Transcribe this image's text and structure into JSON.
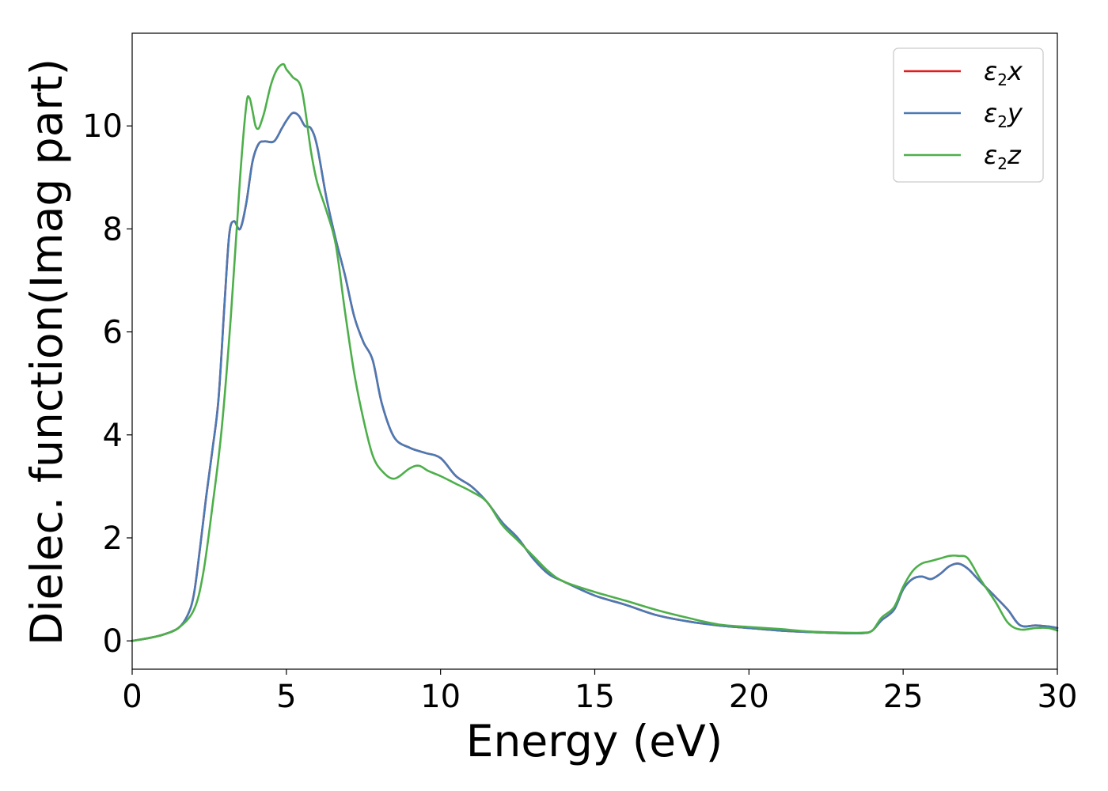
{
  "chart_data": {
    "type": "line",
    "title": "",
    "xlabel": "Energy (eV)",
    "ylabel": "Dielec. function(Imag part)",
    "xlim": [
      0,
      30
    ],
    "ylim": [
      -0.55,
      11.8
    ],
    "xticks": [
      0,
      5,
      10,
      15,
      20,
      25,
      30
    ],
    "xtick_labels": [
      "0",
      "5",
      "10",
      "15",
      "20",
      "25",
      "30"
    ],
    "yticks": [
      0,
      2,
      4,
      6,
      8,
      10
    ],
    "ytick_labels": [
      "0",
      "2",
      "4",
      "6",
      "8",
      "10"
    ],
    "grid": false,
    "legend_position": "top-right",
    "series": [
      {
        "name": "ε2x",
        "legend_symbol": "ε",
        "legend_sub": "2",
        "legend_suffix": "x",
        "color": "#e41a1c",
        "x": [
          0,
          0.5,
          1.0,
          1.5,
          1.8,
          2.0,
          2.2,
          2.4,
          2.6,
          2.8,
          3.0,
          3.15,
          3.3,
          3.5,
          3.7,
          3.9,
          4.1,
          4.3,
          4.6,
          4.85,
          5.0,
          5.2,
          5.4,
          5.6,
          5.8,
          6.0,
          6.3,
          6.6,
          6.9,
          7.2,
          7.5,
          7.8,
          8.1,
          8.5,
          9.0,
          9.5,
          10.0,
          10.5,
          11.0,
          11.5,
          12.0,
          12.5,
          13.0,
          13.5,
          14.0,
          15.0,
          16.0,
          17.0,
          18.0,
          19.0,
          20.0,
          21.0,
          22.0,
          23.0,
          23.7,
          24.0,
          24.3,
          24.7,
          25.0,
          25.3,
          25.6,
          25.9,
          26.2,
          26.5,
          26.8,
          27.1,
          27.5,
          28.0,
          28.4,
          28.8,
          29.3,
          29.7,
          30.0
        ],
        "y": [
          0,
          0.05,
          0.12,
          0.25,
          0.5,
          0.9,
          1.8,
          2.8,
          3.7,
          4.7,
          6.6,
          7.9,
          8.15,
          8.0,
          8.5,
          9.3,
          9.65,
          9.7,
          9.7,
          9.95,
          10.1,
          10.25,
          10.2,
          10.0,
          9.95,
          9.6,
          8.6,
          7.8,
          7.1,
          6.3,
          5.8,
          5.45,
          4.6,
          3.95,
          3.75,
          3.65,
          3.55,
          3.2,
          3.0,
          2.7,
          2.3,
          2.0,
          1.6,
          1.3,
          1.15,
          0.88,
          0.7,
          0.5,
          0.38,
          0.3,
          0.25,
          0.2,
          0.17,
          0.15,
          0.15,
          0.2,
          0.4,
          0.6,
          1.0,
          1.2,
          1.25,
          1.2,
          1.3,
          1.45,
          1.5,
          1.4,
          1.15,
          0.85,
          0.6,
          0.3,
          0.3,
          0.28,
          0.25
        ]
      },
      {
        "name": "ε2y",
        "legend_symbol": "ε",
        "legend_sub": "2",
        "legend_suffix": "y",
        "color": "#4a7ab4",
        "x": [
          0,
          0.5,
          1.0,
          1.5,
          1.8,
          2.0,
          2.2,
          2.4,
          2.6,
          2.8,
          3.0,
          3.15,
          3.3,
          3.5,
          3.7,
          3.9,
          4.1,
          4.3,
          4.6,
          4.85,
          5.0,
          5.2,
          5.4,
          5.6,
          5.8,
          6.0,
          6.3,
          6.6,
          6.9,
          7.2,
          7.5,
          7.8,
          8.1,
          8.5,
          9.0,
          9.5,
          10.0,
          10.5,
          11.0,
          11.5,
          12.0,
          12.5,
          13.0,
          13.5,
          14.0,
          15.0,
          16.0,
          17.0,
          18.0,
          19.0,
          20.0,
          21.0,
          22.0,
          23.0,
          23.7,
          24.0,
          24.3,
          24.7,
          25.0,
          25.3,
          25.6,
          25.9,
          26.2,
          26.5,
          26.8,
          27.1,
          27.5,
          28.0,
          28.4,
          28.8,
          29.3,
          29.7,
          30.0
        ],
        "y": [
          0,
          0.05,
          0.12,
          0.25,
          0.5,
          0.9,
          1.8,
          2.8,
          3.7,
          4.7,
          6.6,
          7.9,
          8.15,
          8.0,
          8.5,
          9.3,
          9.65,
          9.7,
          9.7,
          9.95,
          10.1,
          10.25,
          10.2,
          10.0,
          9.95,
          9.6,
          8.6,
          7.8,
          7.1,
          6.3,
          5.8,
          5.45,
          4.6,
          3.95,
          3.75,
          3.65,
          3.55,
          3.2,
          3.0,
          2.7,
          2.3,
          2.0,
          1.6,
          1.3,
          1.15,
          0.88,
          0.7,
          0.5,
          0.38,
          0.3,
          0.25,
          0.2,
          0.17,
          0.15,
          0.15,
          0.2,
          0.4,
          0.6,
          1.0,
          1.2,
          1.25,
          1.2,
          1.3,
          1.45,
          1.5,
          1.4,
          1.15,
          0.85,
          0.6,
          0.3,
          0.3,
          0.28,
          0.25
        ]
      },
      {
        "name": "ε2z",
        "legend_symbol": "ε",
        "legend_sub": "2",
        "legend_suffix": "z",
        "color": "#4daf4a",
        "x": [
          0,
          0.5,
          1.0,
          1.5,
          2.0,
          2.3,
          2.6,
          2.9,
          3.2,
          3.5,
          3.7,
          3.8,
          3.9,
          4.0,
          4.1,
          4.2,
          4.3,
          4.5,
          4.7,
          4.9,
          5.0,
          5.2,
          5.5,
          5.8,
          6.0,
          6.3,
          6.6,
          6.9,
          7.2,
          7.5,
          7.8,
          8.1,
          8.5,
          9.0,
          9.3,
          9.6,
          10.0,
          10.5,
          11.0,
          11.5,
          12.0,
          12.5,
          13.0,
          13.5,
          14.0,
          15.0,
          16.0,
          17.0,
          18.0,
          19.0,
          20.0,
          21.0,
          22.0,
          23.0,
          23.7,
          24.0,
          24.3,
          24.7,
          25.0,
          25.3,
          25.6,
          25.9,
          26.2,
          26.5,
          26.8,
          27.1,
          27.5,
          28.0,
          28.4,
          28.8,
          29.3,
          29.7,
          30.0
        ],
        "y": [
          0,
          0.05,
          0.12,
          0.25,
          0.6,
          1.3,
          2.6,
          4.1,
          6.3,
          9.0,
          10.4,
          10.55,
          10.3,
          10.0,
          9.95,
          10.1,
          10.3,
          10.8,
          11.1,
          11.2,
          11.1,
          10.95,
          10.7,
          9.5,
          8.9,
          8.35,
          7.7,
          6.4,
          5.2,
          4.3,
          3.6,
          3.3,
          3.15,
          3.35,
          3.4,
          3.3,
          3.2,
          3.05,
          2.9,
          2.7,
          2.25,
          1.95,
          1.65,
          1.35,
          1.15,
          0.95,
          0.78,
          0.6,
          0.45,
          0.32,
          0.27,
          0.23,
          0.18,
          0.16,
          0.16,
          0.2,
          0.45,
          0.65,
          1.05,
          1.35,
          1.5,
          1.55,
          1.6,
          1.65,
          1.65,
          1.6,
          1.2,
          0.75,
          0.35,
          0.22,
          0.25,
          0.25,
          0.2
        ]
      }
    ]
  }
}
